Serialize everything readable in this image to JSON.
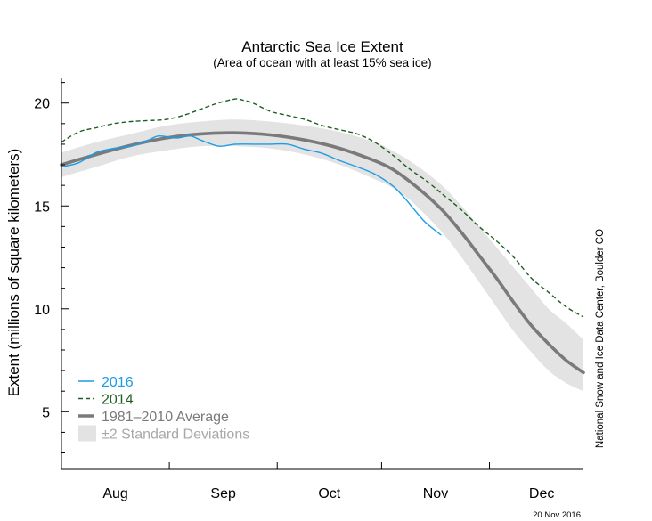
{
  "chart_data": {
    "type": "line",
    "title": "Antarctic Sea Ice Extent",
    "subtitle": "(Area of ocean with at least 15% sea ice)",
    "ylabel": "Extent (millions of square kilometers)",
    "xlabel": "",
    "ylim": [
      2.2,
      21.2
    ],
    "yticks": [
      5,
      10,
      15,
      20
    ],
    "xlim": [
      0,
      150
    ],
    "x_month_ticks": [
      0,
      31,
      62,
      92,
      123,
      153
    ],
    "month_labels": [
      {
        "label": "Aug",
        "x": 15.5
      },
      {
        "label": "Sep",
        "x": 46.5
      },
      {
        "label": "Oct",
        "x": 77
      },
      {
        "label": "Nov",
        "x": 107.5
      },
      {
        "label": "Dec",
        "x": 138
      }
    ],
    "series": [
      {
        "name": "2016",
        "style": "solid",
        "color": "#1b9ce6",
        "x": [
          0,
          5,
          10,
          15,
          20,
          25,
          28,
          33,
          37,
          40,
          44,
          46,
          50,
          55,
          60,
          65,
          70,
          75,
          80,
          85,
          90,
          95,
          98,
          101,
          104,
          106,
          109
        ],
        "y": [
          16.9,
          17.1,
          17.6,
          17.8,
          17.9,
          18.2,
          18.4,
          18.3,
          18.4,
          18.2,
          17.95,
          17.9,
          18.0,
          18.0,
          18.0,
          18.0,
          17.75,
          17.55,
          17.2,
          16.9,
          16.55,
          16.0,
          15.5,
          14.9,
          14.3,
          14.0,
          13.6
        ]
      },
      {
        "name": "2014",
        "style": "dashed",
        "color": "#1e5e20",
        "x": [
          0,
          5,
          10,
          15,
          20,
          25,
          30,
          35,
          40,
          45,
          50,
          52,
          55,
          60,
          65,
          70,
          75,
          80,
          85,
          90,
          95,
          100,
          105,
          110,
          115,
          120,
          125,
          130,
          135,
          140,
          145,
          150
        ],
        "y": [
          18.1,
          18.6,
          18.8,
          19.0,
          19.1,
          19.15,
          19.2,
          19.4,
          19.7,
          20.0,
          20.2,
          20.15,
          20.0,
          19.6,
          19.4,
          19.2,
          18.9,
          18.7,
          18.5,
          18.1,
          17.5,
          16.8,
          16.2,
          15.5,
          14.8,
          14.0,
          13.3,
          12.5,
          11.5,
          10.8,
          10.1,
          9.6
        ]
      },
      {
        "name": "1981–2010 Average",
        "style": "solid",
        "color": "#7a7a7a",
        "x": [
          0,
          10,
          20,
          30,
          40,
          50,
          60,
          70,
          80,
          90,
          95,
          100,
          105,
          110,
          115,
          120,
          125,
          130,
          135,
          140,
          145,
          150
        ],
        "y": [
          17.0,
          17.5,
          17.95,
          18.3,
          18.5,
          18.55,
          18.45,
          18.2,
          17.8,
          17.2,
          16.8,
          16.2,
          15.5,
          14.7,
          13.7,
          12.6,
          11.5,
          10.3,
          9.2,
          8.3,
          7.5,
          6.9
        ]
      }
    ],
    "band": {
      "name": "±2 Standard Deviations",
      "color": "#e3e3e3",
      "x": [
        0,
        10,
        20,
        30,
        40,
        50,
        60,
        70,
        80,
        90,
        95,
        100,
        105,
        110,
        115,
        120,
        125,
        130,
        135,
        140,
        145,
        150
      ],
      "upper": [
        17.6,
        18.1,
        18.5,
        18.9,
        19.1,
        19.2,
        19.1,
        18.9,
        18.6,
        18.1,
        17.7,
        17.2,
        16.6,
        15.9,
        15.0,
        14.0,
        13.0,
        12.0,
        11.0,
        10.0,
        9.3,
        8.5
      ],
      "lower": [
        16.4,
        16.9,
        17.4,
        17.7,
        17.9,
        17.9,
        17.8,
        17.5,
        17.0,
        16.3,
        15.9,
        15.3,
        14.5,
        13.6,
        12.5,
        11.3,
        10.1,
        8.9,
        7.9,
        7.0,
        6.4,
        6.0
      ]
    },
    "legend": {
      "placement": "bottom-left",
      "entries": [
        {
          "label": "2016",
          "color": "#1b9ce6",
          "kind": "solid"
        },
        {
          "label": "2014",
          "color": "#1e5e20",
          "kind": "dashed"
        },
        {
          "label": "1981–2010 Average",
          "color": "#7a7a7a",
          "kind": "thick"
        },
        {
          "label": "±2 Standard Deviations",
          "color": "#a8a8a8",
          "kind": "band"
        }
      ]
    },
    "grid": false
  },
  "credit": "National Snow and Ice Data Center, Boulder CO",
  "date_stamp": "20 Nov 2016"
}
